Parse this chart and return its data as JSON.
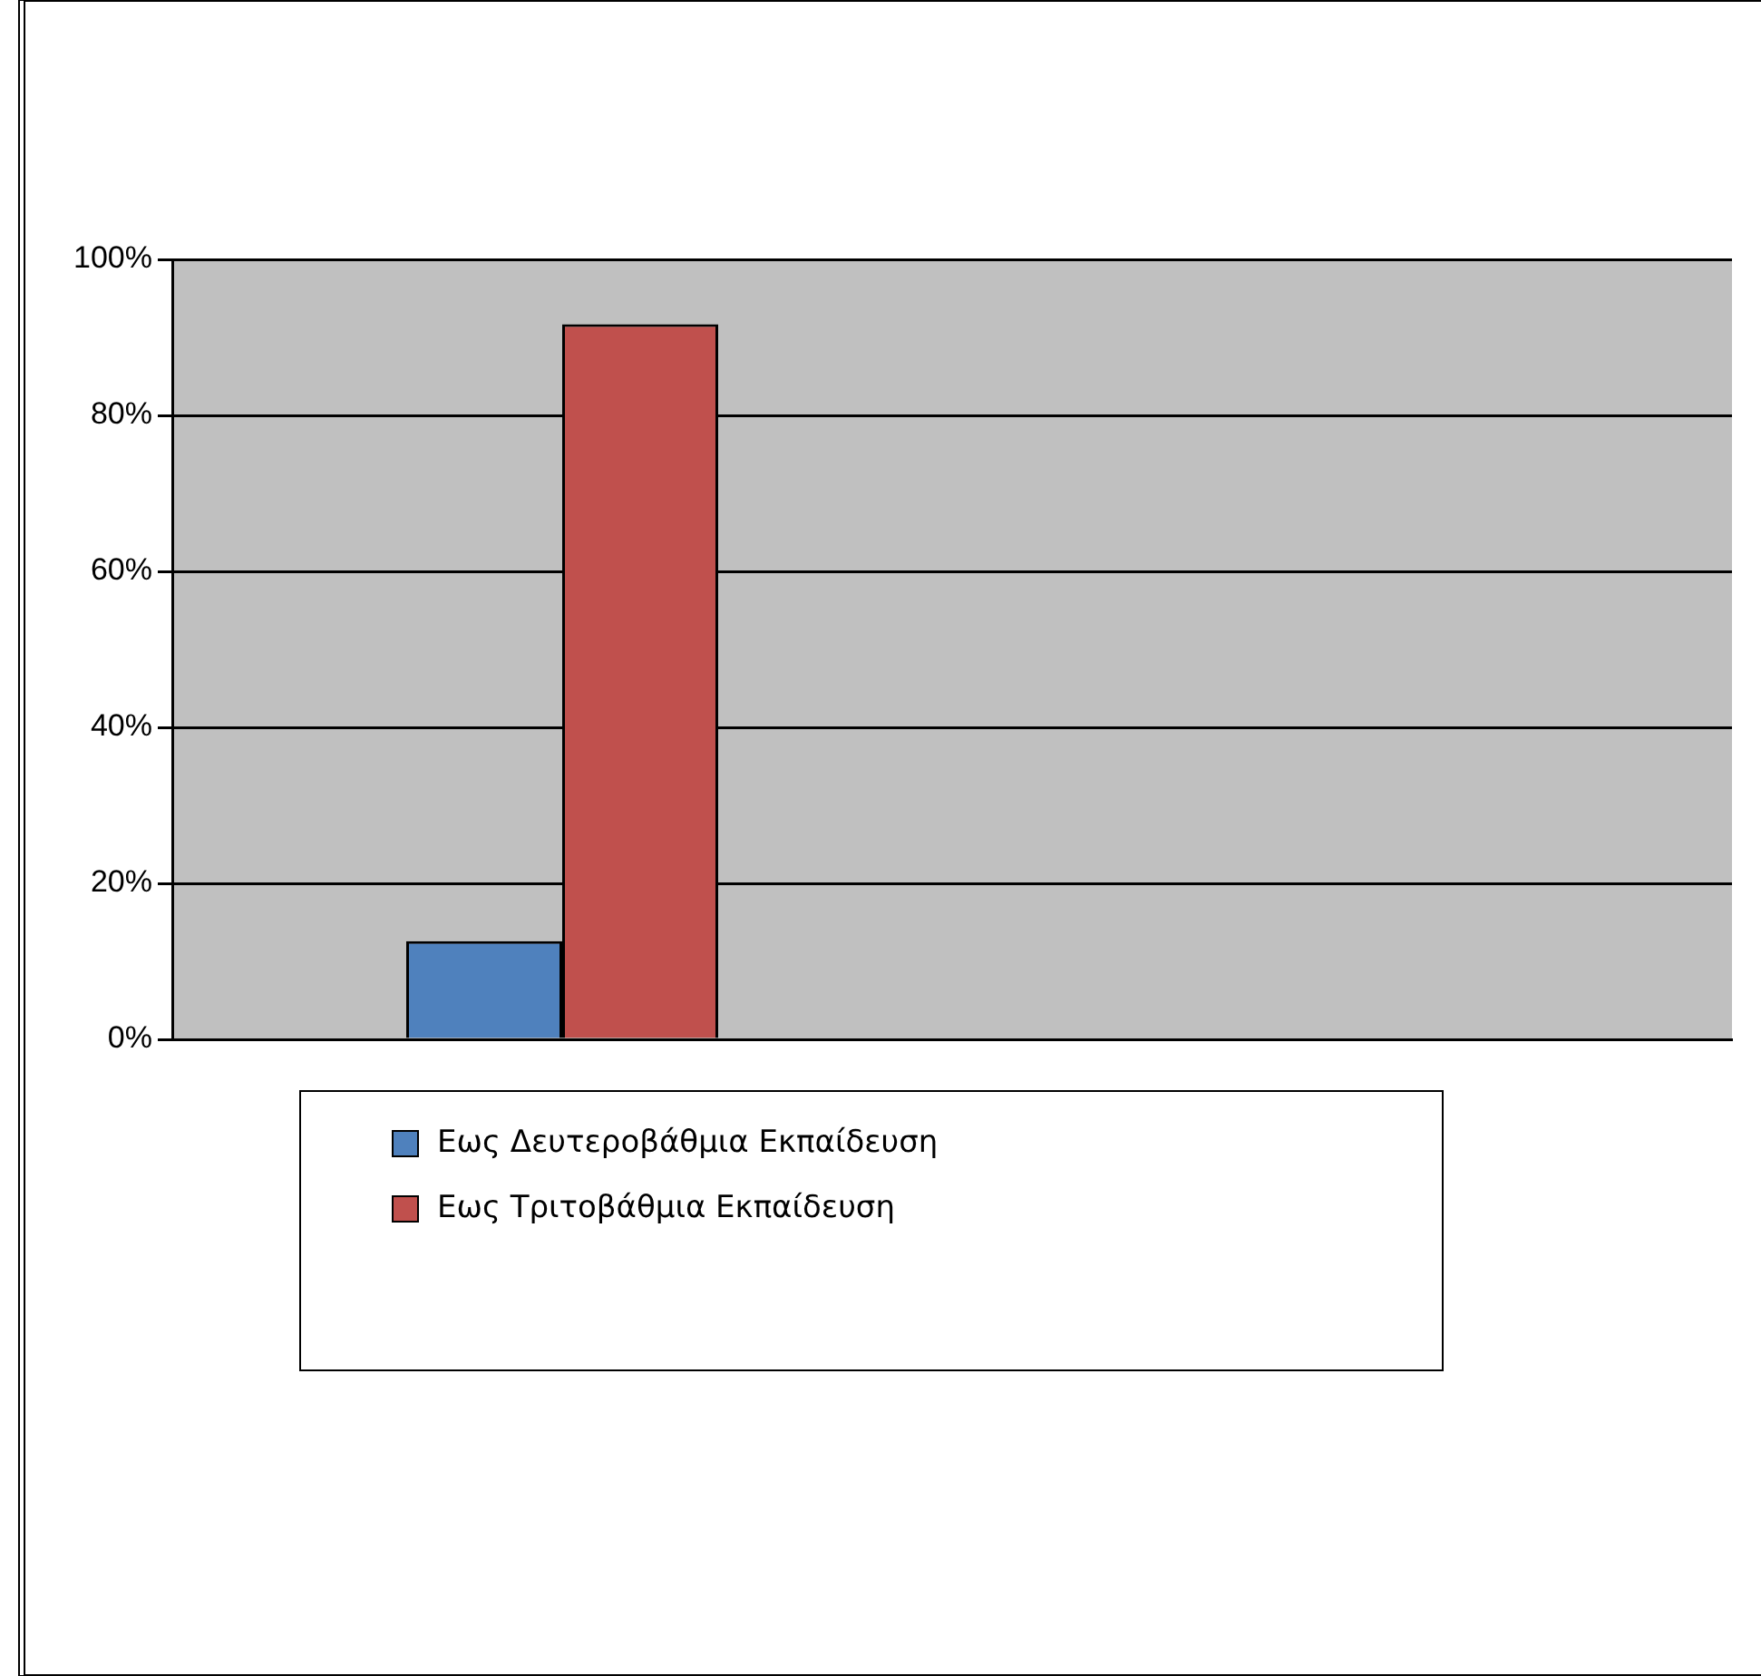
{
  "chart_data": {
    "type": "bar",
    "categories": [
      null,
      null
    ],
    "series": [
      {
        "name": "Εως Δευτεροβάθμια Εκπαίδευση",
        "color": "#4f81bd",
        "values": [
          12.6,
          null
        ]
      },
      {
        "name": "Εως Τριτοβάθμια Εκπαίδευση",
        "color": "#c0504d",
        "values": [
          91.7,
          null
        ]
      }
    ],
    "ylim": [
      0,
      100
    ],
    "yticks": [
      {
        "value": 0,
        "label": "0%"
      },
      {
        "value": 20,
        "label": "20%"
      },
      {
        "value": 40,
        "label": "40%"
      },
      {
        "value": 60,
        "label": "60%"
      },
      {
        "value": 80,
        "label": "80%"
      },
      {
        "value": 100,
        "label": "100%"
      }
    ],
    "grid": "y",
    "legend": "bottom"
  }
}
